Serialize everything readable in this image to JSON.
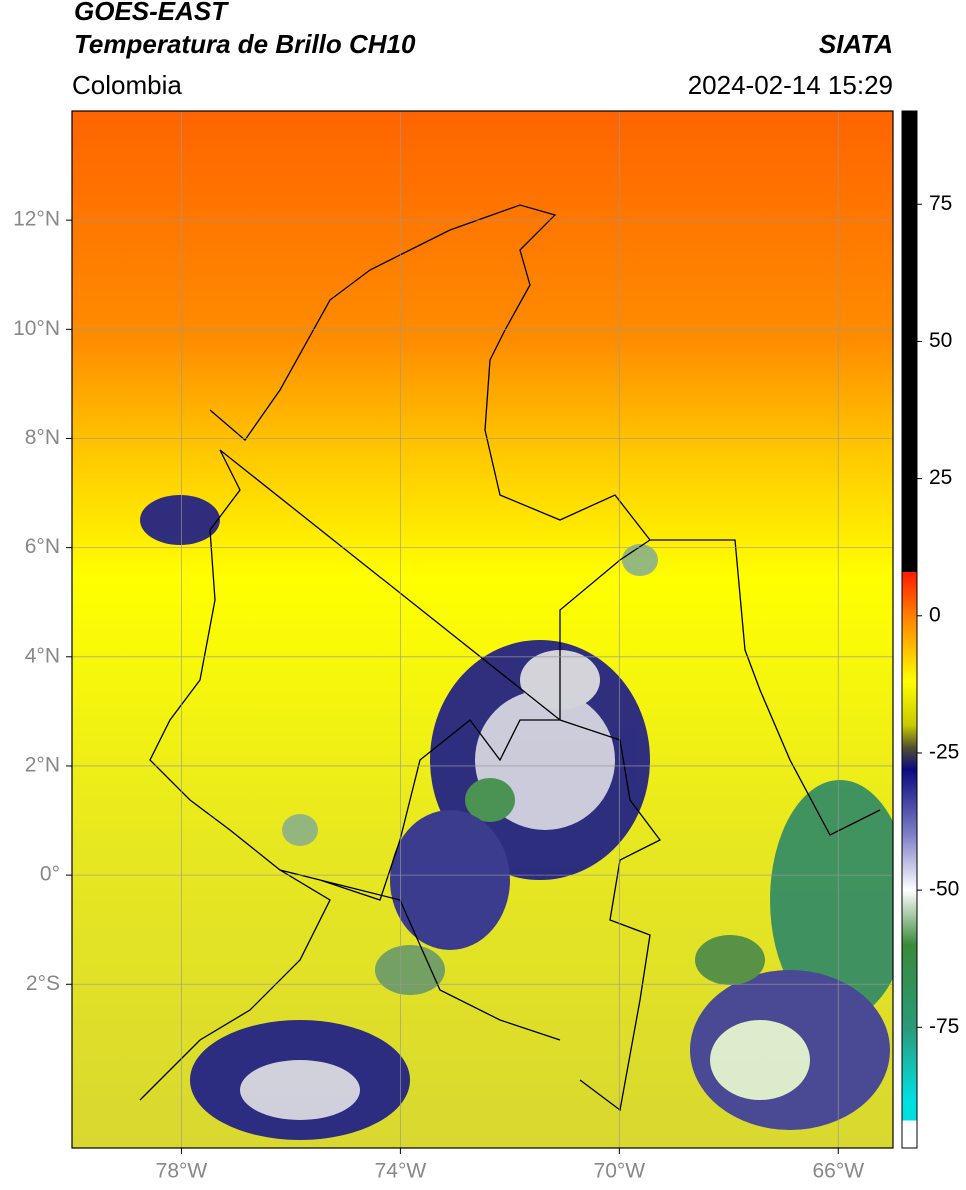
{
  "map": {
    "title": "GOES-EAST",
    "subtitle": "Temperatura de Brillo CH10",
    "region": "Colombia",
    "source": "SIATA",
    "datetime": "2024-02-14 15:29",
    "xlim": [
      -80,
      -65
    ],
    "ylim": [
      -5,
      14
    ],
    "xticks": [
      {
        "value": -78,
        "label": "78°W"
      },
      {
        "value": -74,
        "label": "74°W"
      },
      {
        "value": -70,
        "label": "70°W"
      },
      {
        "value": -66,
        "label": "66°W"
      }
    ],
    "yticks": [
      {
        "value": 12,
        "label": "12°N"
      },
      {
        "value": 10,
        "label": "10°N"
      },
      {
        "value": 8,
        "label": "8°N"
      },
      {
        "value": 6,
        "label": "6°N"
      },
      {
        "value": 4,
        "label": "4°N"
      },
      {
        "value": 2,
        "label": "2°N"
      },
      {
        "value": 0,
        "label": "0°"
      },
      {
        "value": -2,
        "label": "2°S"
      }
    ],
    "grid": true,
    "colorbar": {
      "lim": [
        -97,
        92
      ],
      "ticks": [
        75,
        50,
        25,
        0,
        -25,
        -50,
        -75
      ],
      "stops": [
        {
          "value": 92,
          "color": "#000000"
        },
        {
          "value": 8,
          "color": "#000000"
        },
        {
          "value": 8,
          "color": "#ff1a00"
        },
        {
          "value": 0,
          "color": "#ff8000"
        },
        {
          "value": -12,
          "color": "#ffff00"
        },
        {
          "value": -20,
          "color": "#c8c800"
        },
        {
          "value": -24,
          "color": "#505030"
        },
        {
          "value": -28,
          "color": "#0a0a80"
        },
        {
          "value": -40,
          "color": "#8080c8"
        },
        {
          "value": -50,
          "color": "#ffffff"
        },
        {
          "value": -60,
          "color": "#3a8a3a"
        },
        {
          "value": -75,
          "color": "#2a9a7a"
        },
        {
          "value": -88,
          "color": "#00e0e0"
        },
        {
          "value": -92,
          "color": "#00e0e0"
        },
        {
          "value": -92,
          "color": "#ffffff"
        },
        {
          "value": -97,
          "color": "#ffffff"
        }
      ]
    }
  }
}
